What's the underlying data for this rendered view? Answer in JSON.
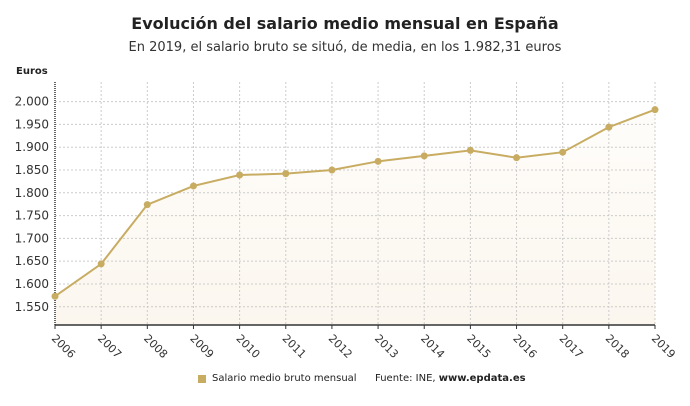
{
  "chart_data": {
    "type": "line",
    "title": "Evolución del salario medio mensual en España",
    "subtitle": "En 2019, el salario bruto se situó, de media, en los 1.982,31 euros",
    "ylabel": "Euros",
    "xlabel": "",
    "categories": [
      "2006",
      "2007",
      "2008",
      "2009",
      "2010",
      "2011",
      "2012",
      "2013",
      "2014",
      "2015",
      "2016",
      "2017",
      "2018",
      "2019"
    ],
    "series": [
      {
        "name": "Salario medio bruto mensual",
        "values": [
          1573,
          1644,
          1774,
          1815,
          1839,
          1842,
          1850,
          1869,
          1881,
          1893,
          1877,
          1889,
          1944,
          1982.31
        ]
      }
    ],
    "yticks": [
      1550,
      1600,
      1650,
      1700,
      1750,
      1800,
      1850,
      1900,
      1950,
      2000
    ],
    "ytick_labels": [
      "1.550",
      "1.600",
      "1.650",
      "1.700",
      "1.750",
      "1.800",
      "1.850",
      "1.900",
      "1.950",
      "2.000"
    ],
    "ylim": [
      1510,
      2043
    ],
    "grid": true,
    "area_fill": true,
    "legend_position": "bottom",
    "colors": {
      "line": "#c8ac62",
      "fill": "#fbf6ee",
      "grid": "#cccccc"
    }
  },
  "source": {
    "prefix": "Fuente: INE, ",
    "site": "www.epdata.es"
  }
}
